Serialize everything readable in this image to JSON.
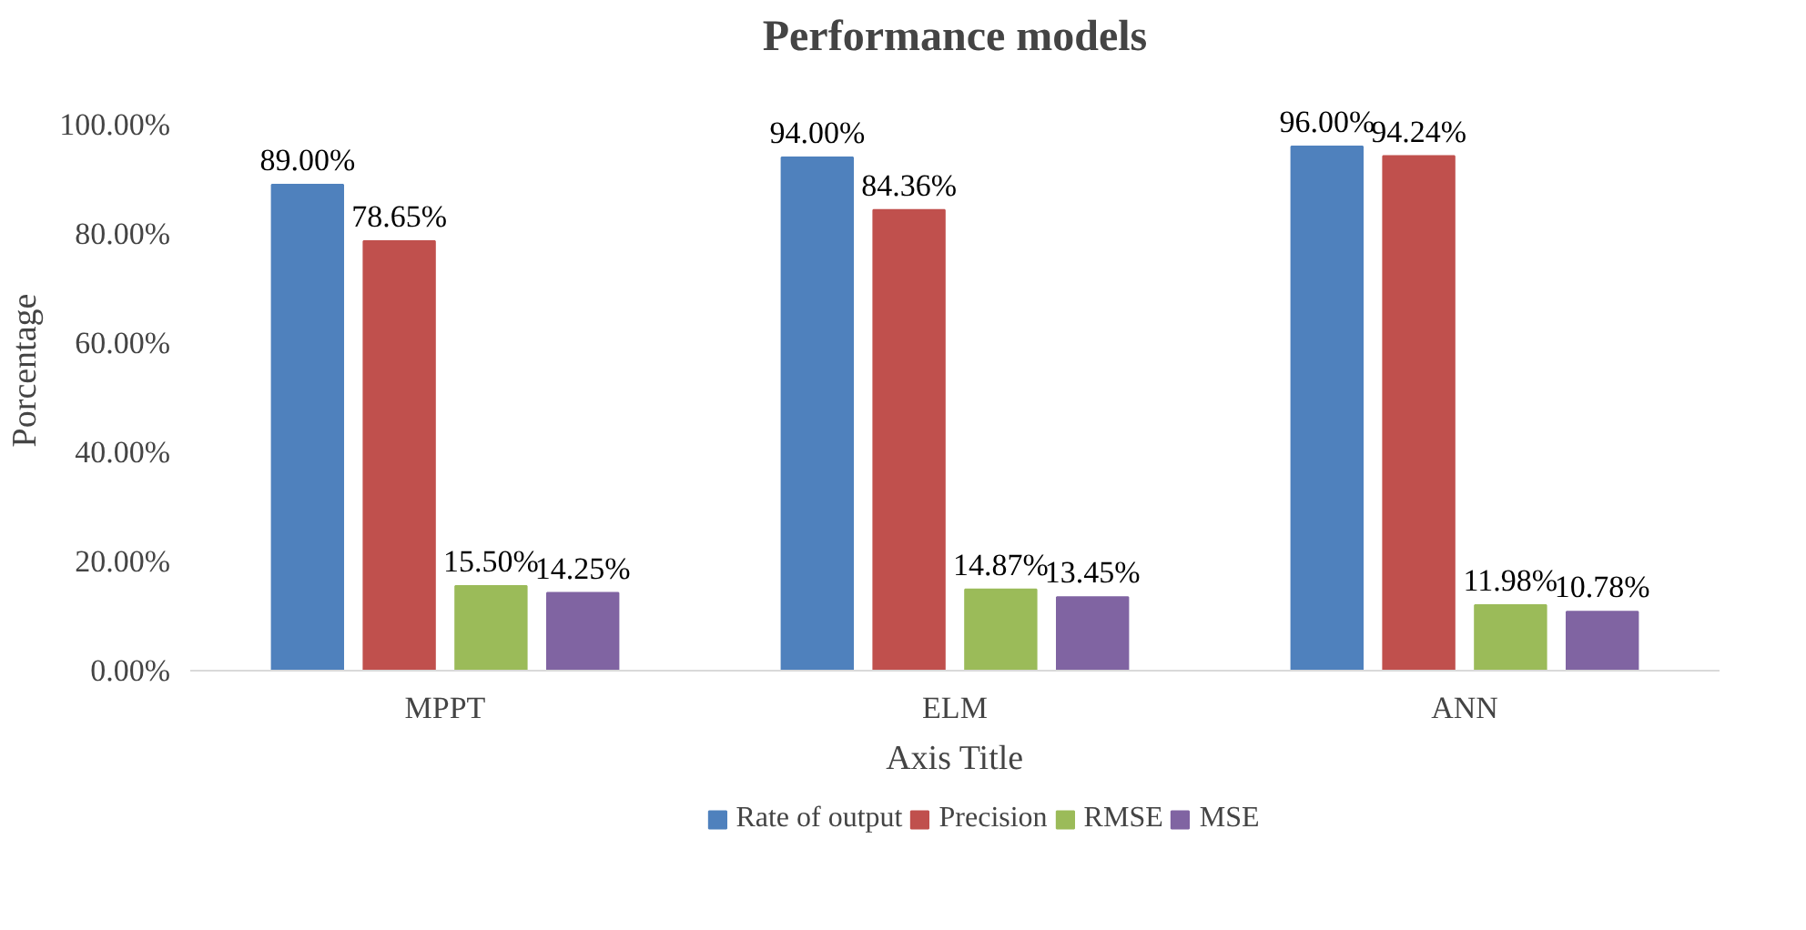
{
  "chart_data": {
    "type": "bar",
    "title": "Performance models",
    "xlabel": "Axis Title",
    "ylabel": "Porcentage",
    "categories": [
      "MPPT",
      "ELM",
      "ANN"
    ],
    "series": [
      {
        "name": "Rate of output",
        "color": "#4f81bd",
        "values": [
          89.0,
          94.0,
          96.0
        ],
        "value_labels": [
          "89.00%",
          "94.00%",
          "96.00%"
        ]
      },
      {
        "name": "Precision",
        "color": "#c0504d",
        "values": [
          78.65,
          84.36,
          94.24
        ],
        "value_labels": [
          "78.65%",
          "84.36%",
          "94.24%"
        ]
      },
      {
        "name": "RMSE",
        "color": "#9bbb59",
        "values": [
          15.5,
          14.87,
          11.98
        ],
        "value_labels": [
          "15.50%",
          "14.87%",
          "11.98%"
        ]
      },
      {
        "name": "MSE",
        "color": "#8064a2",
        "values": [
          14.25,
          13.45,
          10.78
        ],
        "value_labels": [
          "14.25%",
          "13.45%",
          "10.78%"
        ]
      }
    ],
    "ylim": [
      0,
      100
    ],
    "yticks": [
      {
        "value": 0,
        "label": "0.00%"
      },
      {
        "value": 20,
        "label": "20.00%"
      },
      {
        "value": 40,
        "label": "40.00%"
      },
      {
        "value": 60,
        "label": "60.00%"
      },
      {
        "value": 80,
        "label": "80.00%"
      },
      {
        "value": 100,
        "label": "100.00%"
      }
    ],
    "grid": false,
    "legend": "bottom"
  }
}
